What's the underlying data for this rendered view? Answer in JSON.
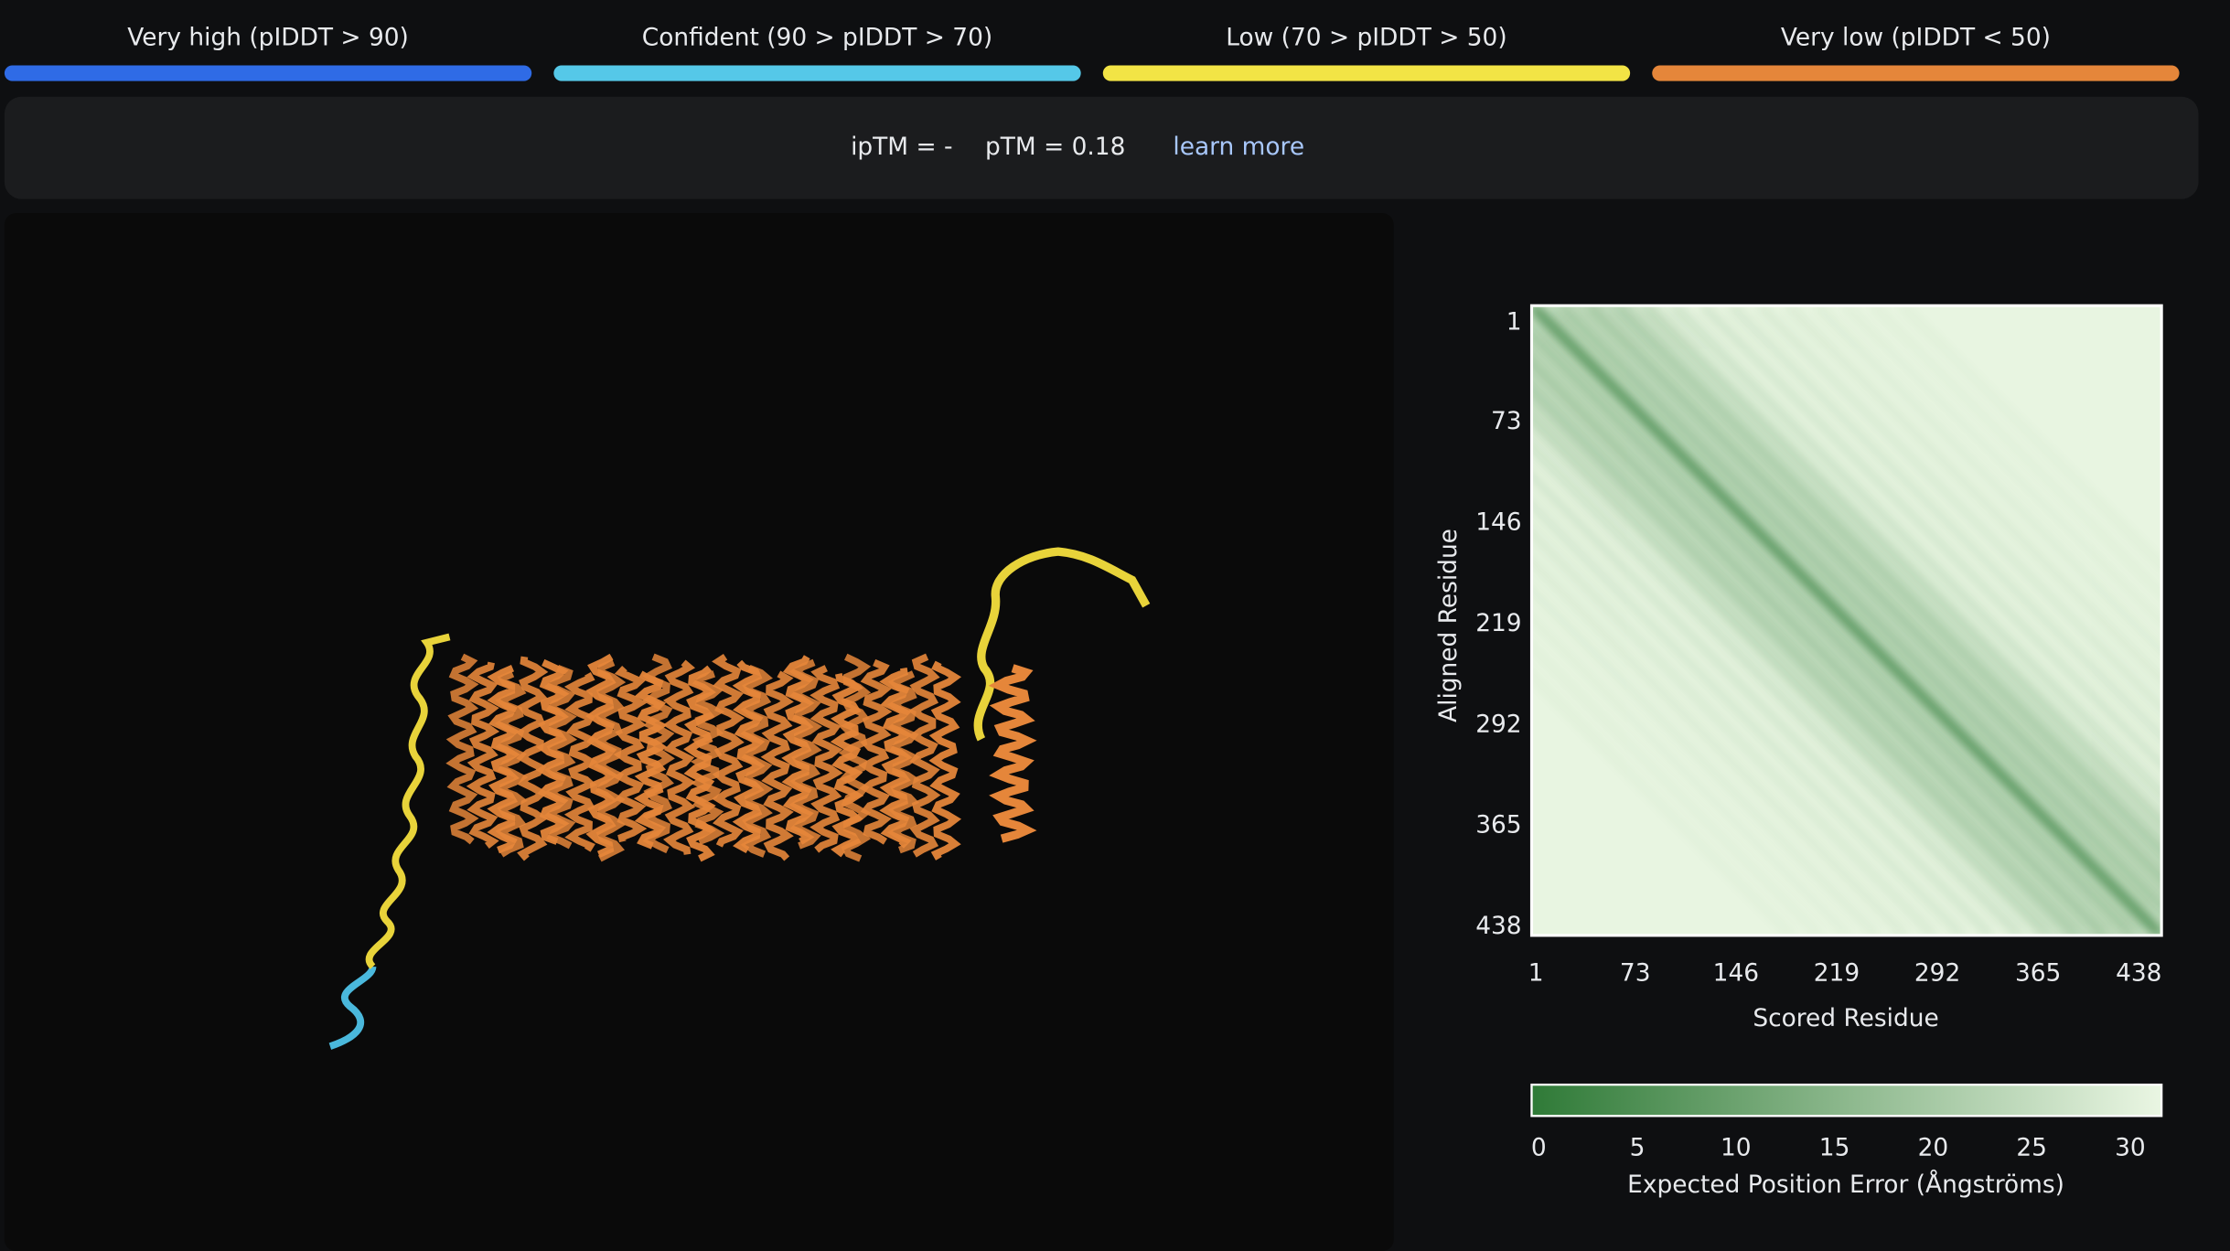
{
  "legend": [
    {
      "label": "Very high (pIDDT > 90)",
      "color": "#2f6be6"
    },
    {
      "label": "Confident (90 > pIDDT > 70)",
      "color": "#55c8e8"
    },
    {
      "label": "Low (70 > pIDDT > 50)",
      "color": "#f2e445"
    },
    {
      "label": "Very low (pIDDT < 50)",
      "color": "#e5863a"
    }
  ],
  "metrics": {
    "iptm": "ipTM = -",
    "ptm": "pTM = 0.18",
    "link": "learn more"
  },
  "pae": {
    "xlabel": "Scored Residue",
    "ylabel": "Aligned Residue",
    "xlim": [
      1,
      438
    ],
    "ylim": [
      1,
      438
    ],
    "xticks": [
      1,
      73,
      146,
      219,
      292,
      365,
      438
    ],
    "yticks": [
      1,
      73,
      146,
      219,
      292,
      365,
      438
    ],
    "colorbar": {
      "label": "Expected Position Error (Ångströms)",
      "lim": [
        0,
        30
      ],
      "ticks": [
        0,
        5,
        10,
        15,
        20,
        25,
        30
      ],
      "colors": [
        "#2f7a37",
        "#eaf6e3"
      ]
    }
  }
}
